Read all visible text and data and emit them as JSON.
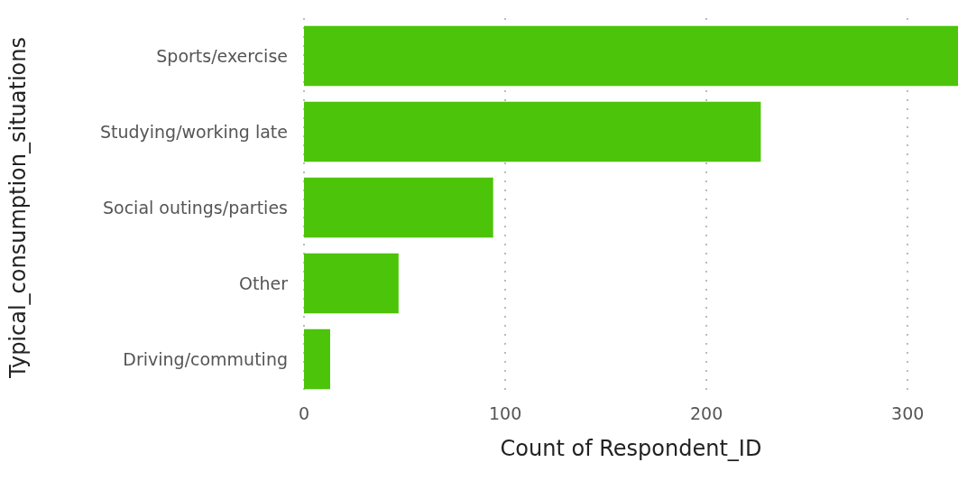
{
  "chart_data": {
    "type": "bar",
    "orientation": "horizontal",
    "categories": [
      "Sports/exercise",
      "Studying/working late",
      "Social outings/parties",
      "Other",
      "Driving/commuting"
    ],
    "values": [
      325,
      227,
      94,
      47,
      13
    ],
    "color": "#4cc40a",
    "xlabel": "Count of Respondent_ID",
    "ylabel": "Typical_consumption_situations",
    "xlim": [
      0,
      325
    ],
    "xticks": [
      0,
      100,
      200,
      300
    ],
    "grid": "x"
  }
}
